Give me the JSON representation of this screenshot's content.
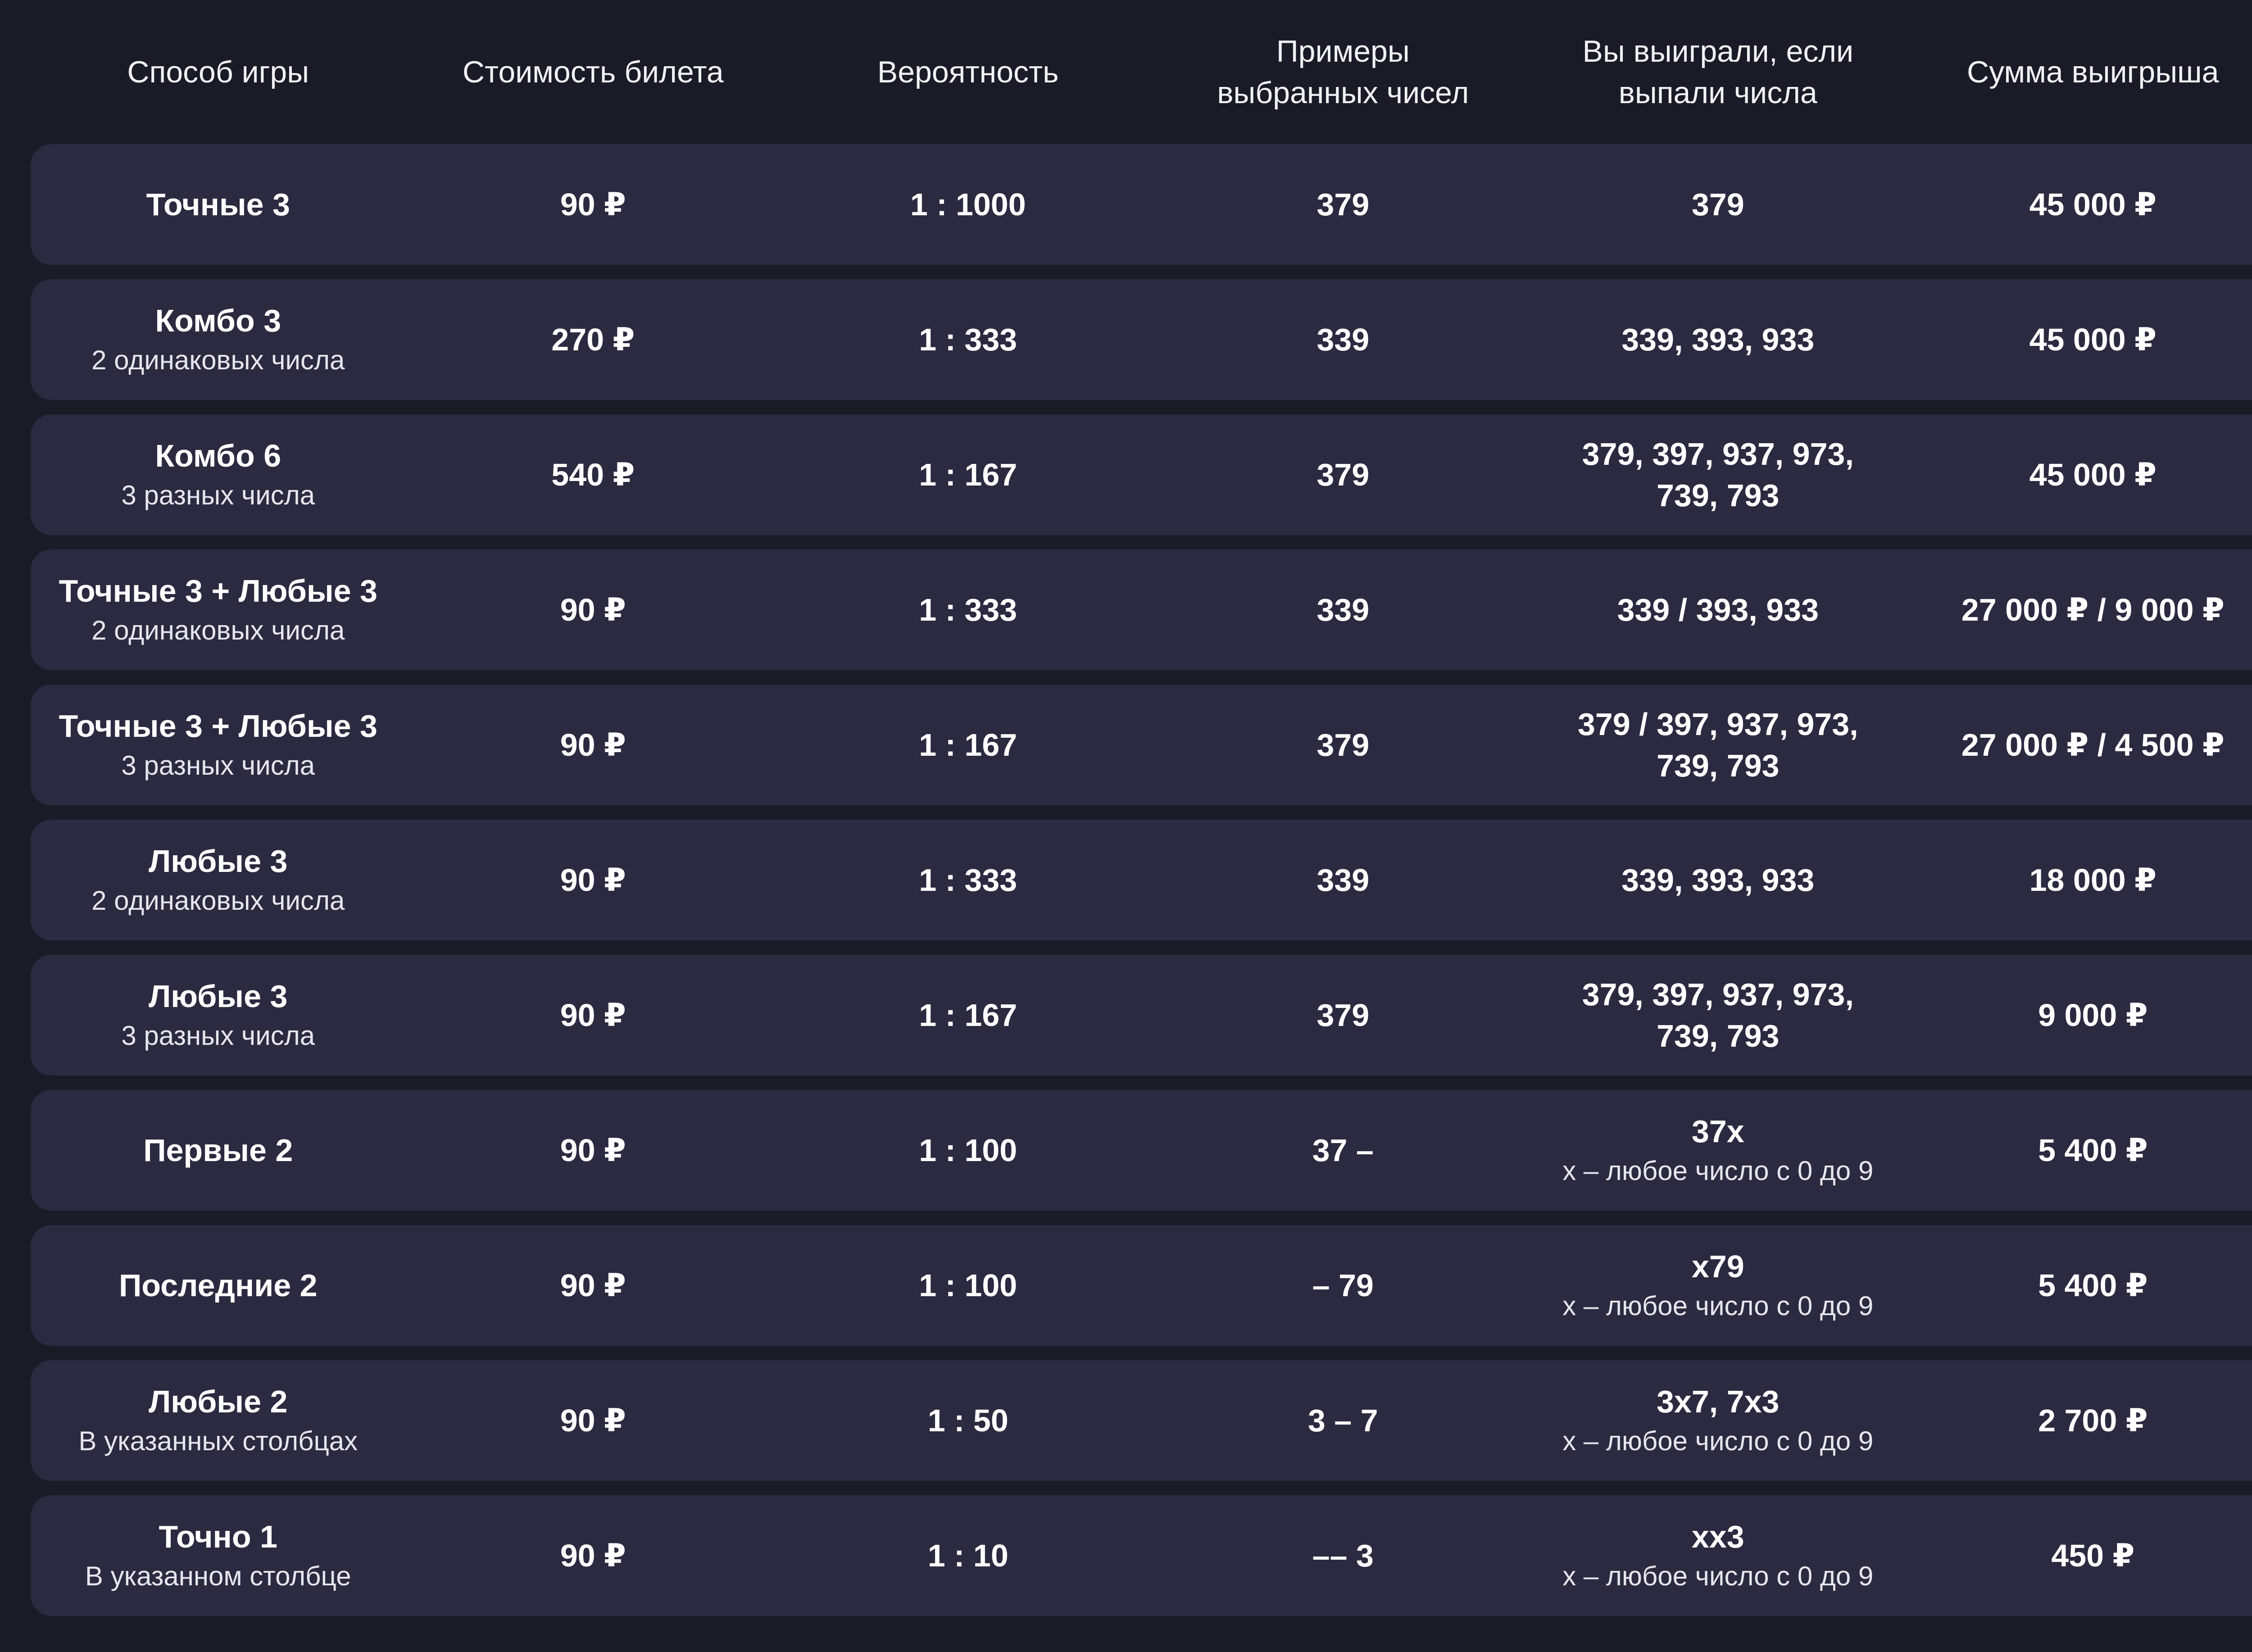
{
  "headers": [
    "Способ игры",
    "Стоимость билета",
    "Вероятность",
    "Примеры\nвыбранных чисел",
    "Вы выиграли, если\nвыпали числа",
    "Сумма выигрыша"
  ],
  "rows": [
    {
      "mode": "Точные 3",
      "mode_note": "",
      "price": "90 ₽",
      "odds": "1 : 1000",
      "example": "379",
      "win_numbers": "379",
      "win_note": "",
      "prize": "45 000 ₽"
    },
    {
      "mode": "Комбо 3",
      "mode_note": "2 одинаковых числа",
      "price": "270 ₽",
      "odds": "1 : 333",
      "example": "339",
      "win_numbers": "339, 393, 933",
      "win_note": "",
      "prize": "45 000 ₽"
    },
    {
      "mode": "Комбо 6",
      "mode_note": "3 разных числа",
      "price": "540 ₽",
      "odds": "1 : 167",
      "example": "379",
      "win_numbers": "379, 397, 937, 973,\n739, 793",
      "win_note": "",
      "prize": "45 000 ₽"
    },
    {
      "mode": "Точные 3 + Любые 3",
      "mode_note": "2 одинаковых числа",
      "price": "90 ₽",
      "odds": "1 : 333",
      "example": "339",
      "win_numbers": "339 / 393, 933",
      "win_note": "",
      "prize": "27 000 ₽ / 9 000 ₽"
    },
    {
      "mode": "Точные 3 + Любые 3",
      "mode_note": "3 разных числа",
      "price": "90 ₽",
      "odds": "1 : 167",
      "example": "379",
      "win_numbers": "379 / 397, 937, 973,\n739, 793",
      "win_note": "",
      "prize": "27 000 ₽ / 4 500 ₽"
    },
    {
      "mode": "Любые 3",
      "mode_note": "2 одинаковых числа",
      "price": "90 ₽",
      "odds": "1 : 333",
      "example": "339",
      "win_numbers": "339, 393, 933",
      "win_note": "",
      "prize": "18 000 ₽"
    },
    {
      "mode": "Любые 3",
      "mode_note": "3 разных числа",
      "price": "90 ₽",
      "odds": "1 : 167",
      "example": "379",
      "win_numbers": "379, 397, 937, 973,\n739, 793",
      "win_note": "",
      "prize": "9 000 ₽"
    },
    {
      "mode": "Первые 2",
      "mode_note": "",
      "price": "90 ₽",
      "odds": "1 : 100",
      "example": "37 –",
      "win_numbers": "37x",
      "win_note": "x – любое число с 0 до 9",
      "prize": "5 400 ₽"
    },
    {
      "mode": "Последние 2",
      "mode_note": "",
      "price": "90 ₽",
      "odds": "1 : 100",
      "example": "– 79",
      "win_numbers": "x79",
      "win_note": "x – любое число с 0 до 9",
      "prize": "5 400 ₽"
    },
    {
      "mode": "Любые 2",
      "mode_note": "В указанных столбцах",
      "price": "90 ₽",
      "odds": "1 : 50",
      "example": "3 – 7",
      "win_numbers": "3x7, 7x3",
      "win_note": "x – любое число с 0 до 9",
      "prize": "2 700 ₽"
    },
    {
      "mode": "Точно 1",
      "mode_note": "В указанном столбце",
      "price": "90 ₽",
      "odds": "1 : 10",
      "example": "–– 3",
      "win_numbers": "xx3",
      "win_note": "x – любое число с 0 до 9",
      "prize": "450 ₽"
    }
  ]
}
